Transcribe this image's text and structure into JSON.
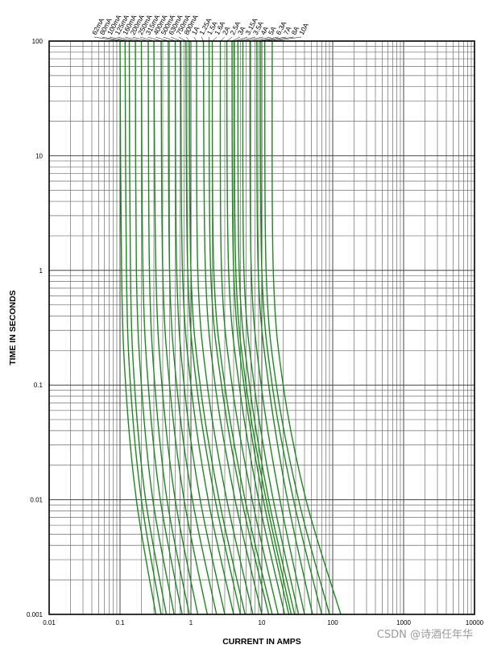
{
  "chart_data": {
    "type": "line",
    "title": "",
    "xlabel": "CURRENT IN AMPS",
    "ylabel": "TIME IN SECONDS",
    "xscale": "log",
    "yscale": "log",
    "xlim": [
      0.01,
      10000
    ],
    "ylim": [
      0.001,
      100
    ],
    "grid": true,
    "line_color": "#1a8a1a",
    "x_ticks": [
      "0.01",
      "0.1",
      "1",
      "10",
      "100",
      "1000",
      "10000"
    ],
    "y_ticks": [
      "0.001",
      "0.01",
      "0.1",
      "1",
      "10",
      "100"
    ],
    "series": [
      {
        "name": "62mA",
        "points": [
          [
            0.1,
            100
          ],
          [
            0.105,
            1
          ],
          [
            0.12,
            0.1
          ],
          [
            0.17,
            0.01
          ],
          [
            0.32,
            0.001
          ]
        ]
      },
      {
        "name": "80mA",
        "points": [
          [
            0.118,
            100
          ],
          [
            0.123,
            1
          ],
          [
            0.14,
            0.1
          ],
          [
            0.2,
            0.01
          ],
          [
            0.38,
            0.001
          ]
        ]
      },
      {
        "name": "100mA",
        "points": [
          [
            0.135,
            100
          ],
          [
            0.14,
            1
          ],
          [
            0.16,
            0.1
          ],
          [
            0.23,
            0.01
          ],
          [
            0.45,
            0.001
          ]
        ]
      },
      {
        "name": "125mA",
        "points": [
          [
            0.165,
            100
          ],
          [
            0.17,
            1
          ],
          [
            0.2,
            0.1
          ],
          [
            0.29,
            0.01
          ],
          [
            0.58,
            0.001
          ]
        ]
      },
      {
        "name": "160mA",
        "points": [
          [
            0.2,
            100
          ],
          [
            0.21,
            1
          ],
          [
            0.25,
            0.1
          ],
          [
            0.37,
            0.01
          ],
          [
            0.75,
            0.001
          ]
        ]
      },
      {
        "name": "200mA",
        "points": [
          [
            0.25,
            100
          ],
          [
            0.26,
            1
          ],
          [
            0.31,
            0.1
          ],
          [
            0.46,
            0.01
          ],
          [
            0.95,
            0.001
          ]
        ]
      },
      {
        "name": "250mA",
        "points": [
          [
            0.3,
            100
          ],
          [
            0.32,
            1
          ],
          [
            0.39,
            0.1
          ],
          [
            0.6,
            0.01
          ],
          [
            1.25,
            0.001
          ]
        ]
      },
      {
        "name": "315mA",
        "points": [
          [
            0.38,
            100
          ],
          [
            0.4,
            1
          ],
          [
            0.5,
            0.1
          ],
          [
            0.8,
            0.01
          ],
          [
            1.7,
            0.001
          ]
        ]
      },
      {
        "name": "400mA",
        "points": [
          [
            0.48,
            100
          ],
          [
            0.5,
            1
          ],
          [
            0.63,
            0.1
          ],
          [
            1.05,
            0.01
          ],
          [
            2.3,
            0.001
          ]
        ]
      },
      {
        "name": "500mA",
        "points": [
          [
            0.6,
            100
          ],
          [
            0.63,
            1
          ],
          [
            0.8,
            0.1
          ],
          [
            1.35,
            0.01
          ],
          [
            3.0,
            0.001
          ]
        ]
      },
      {
        "name": "630mA",
        "points": [
          [
            0.72,
            100
          ],
          [
            0.76,
            1
          ],
          [
            1.0,
            0.1
          ],
          [
            1.75,
            0.01
          ],
          [
            4.0,
            0.001
          ]
        ]
      },
      {
        "name": "750mA",
        "points": [
          [
            0.85,
            100
          ],
          [
            0.9,
            1
          ],
          [
            1.2,
            0.1
          ],
          [
            2.2,
            0.01
          ],
          [
            5.0,
            0.001
          ]
        ]
      },
      {
        "name": "800mA",
        "points": [
          [
            0.95,
            100
          ],
          [
            1.0,
            1
          ],
          [
            1.35,
            0.1
          ],
          [
            2.5,
            0.01
          ],
          [
            5.8,
            0.001
          ]
        ]
      },
      {
        "name": "1A",
        "points": [
          [
            1.2,
            100
          ],
          [
            1.25,
            1
          ],
          [
            1.7,
            0.1
          ],
          [
            3.2,
            0.01
          ],
          [
            7.5,
            0.001
          ]
        ]
      },
      {
        "name": "1.25A",
        "points": [
          [
            1.5,
            100
          ],
          [
            1.6,
            1
          ],
          [
            2.2,
            0.1
          ],
          [
            4.2,
            0.01
          ],
          [
            10,
            0.001
          ]
        ]
      },
      {
        "name": "1.5A",
        "points": [
          [
            1.8,
            100
          ],
          [
            1.9,
            1
          ],
          [
            2.7,
            0.1
          ],
          [
            5.2,
            0.01
          ],
          [
            12.5,
            0.001
          ]
        ]
      },
      {
        "name": "1.6A",
        "points": [
          [
            2.0,
            100
          ],
          [
            2.1,
            1
          ],
          [
            3.0,
            0.1
          ],
          [
            5.8,
            0.01
          ],
          [
            14,
            0.001
          ]
        ]
      },
      {
        "name": "2A",
        "points": [
          [
            2.6,
            100
          ],
          [
            2.7,
            1
          ],
          [
            3.8,
            0.1
          ],
          [
            7.3,
            0.01
          ],
          [
            17,
            0.001
          ]
        ]
      },
      {
        "name": "2.5A",
        "points": [
          [
            3.2,
            100
          ],
          [
            3.4,
            1
          ],
          [
            4.8,
            0.1
          ],
          [
            9.0,
            0.01
          ],
          [
            21,
            0.001
          ]
        ]
      },
      {
        "name": "3A",
        "points": [
          [
            3.8,
            100
          ],
          [
            4.0,
            1
          ],
          [
            5.6,
            0.1
          ],
          [
            10.5,
            0.01
          ],
          [
            24,
            0.001
          ]
        ]
      },
      {
        "name": "3.15A",
        "points": [
          [
            4.1,
            100
          ],
          [
            4.3,
            1
          ],
          [
            6.0,
            0.1
          ],
          [
            11.5,
            0.01
          ],
          [
            26,
            0.001
          ]
        ]
      },
      {
        "name": "3.5A",
        "points": [
          [
            4.6,
            100
          ],
          [
            4.8,
            1
          ],
          [
            6.7,
            0.1
          ],
          [
            12.5,
            0.01
          ],
          [
            29,
            0.001
          ]
        ]
      },
      {
        "name": "4A",
        "points": [
          [
            5.4,
            100
          ],
          [
            5.6,
            1
          ],
          [
            7.8,
            0.1
          ],
          [
            14.5,
            0.01
          ],
          [
            33,
            0.001
          ]
        ]
      },
      {
        "name": "5A",
        "points": [
          [
            6.8,
            100
          ],
          [
            7.1,
            1
          ],
          [
            9.8,
            0.1
          ],
          [
            18,
            0.01
          ],
          [
            40,
            0.001
          ]
        ]
      },
      {
        "name": "6.3A",
        "points": [
          [
            8.5,
            100
          ],
          [
            8.9,
            1
          ],
          [
            12.5,
            0.1
          ],
          [
            23,
            0.01
          ],
          [
            52,
            0.001
          ]
        ]
      },
      {
        "name": "7A",
        "points": [
          [
            9.5,
            100
          ],
          [
            10,
            1
          ],
          [
            14,
            0.1
          ],
          [
            28,
            0.01
          ],
          [
            70,
            0.001
          ]
        ]
      },
      {
        "name": "8A",
        "points": [
          [
            11,
            100
          ],
          [
            11.5,
            1
          ],
          [
            16,
            0.1
          ],
          [
            33,
            0.01
          ],
          [
            90,
            0.001
          ]
        ]
      },
      {
        "name": "10A",
        "points": [
          [
            14,
            100
          ],
          [
            14.5,
            1
          ],
          [
            20,
            0.1
          ],
          [
            42,
            0.01
          ],
          [
            130,
            0.001
          ]
        ]
      }
    ]
  },
  "watermark": "CSDN @诗酒任年华"
}
